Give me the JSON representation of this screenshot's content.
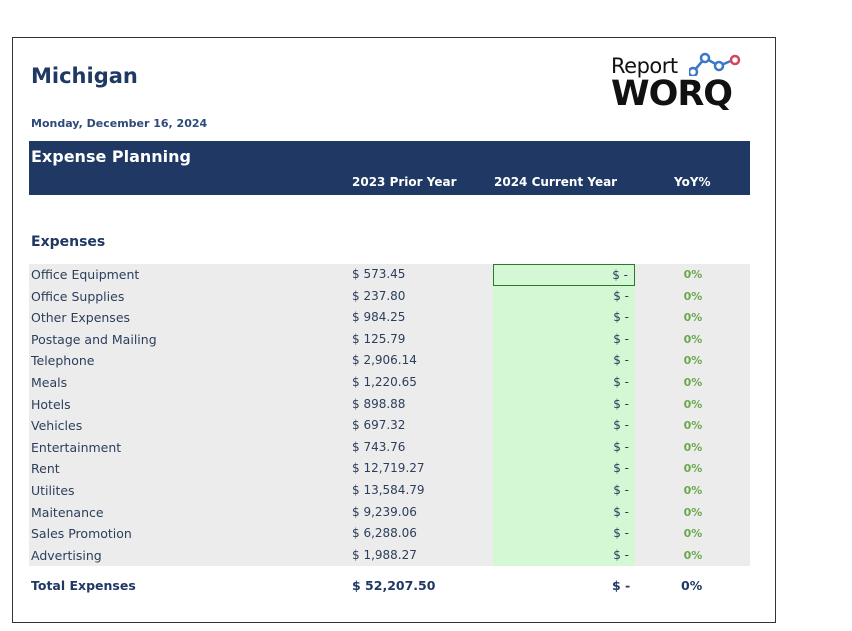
{
  "report": {
    "title": "Michigan",
    "date": "Monday, December 16, 2024",
    "logo_top": "Report",
    "logo_bottom": "WORQ"
  },
  "band": {
    "title": "Expense Planning",
    "col_prior": "2023 Prior Year",
    "col_current": "2024 Current Year",
    "col_yoy": "YoY%"
  },
  "section": "Expenses",
  "rows": [
    {
      "name": "Office Equipment",
      "prior": "$ 573.45",
      "current": "$ -",
      "yoy": "0%"
    },
    {
      "name": "Office Supplies",
      "prior": "$ 237.80",
      "current": "$ -",
      "yoy": "0%"
    },
    {
      "name": "Other Expenses",
      "prior": "$ 984.25",
      "current": "$ -",
      "yoy": "0%"
    },
    {
      "name": "Postage and Mailing",
      "prior": "$ 125.79",
      "current": "$ -",
      "yoy": "0%"
    },
    {
      "name": "Telephone",
      "prior": "$ 2,906.14",
      "current": "$ -",
      "yoy": "0%"
    },
    {
      "name": "Meals",
      "prior": "$ 1,220.65",
      "current": "$ -",
      "yoy": "0%"
    },
    {
      "name": "Hotels",
      "prior": "$ 898.88",
      "current": "$ -",
      "yoy": "0%"
    },
    {
      "name": "Vehicles",
      "prior": "$ 697.32",
      "current": "$ -",
      "yoy": "0%"
    },
    {
      "name": "Entertainment",
      "prior": "$ 743.76",
      "current": "$ -",
      "yoy": "0%"
    },
    {
      "name": "Rent",
      "prior": "$ 12,719.27",
      "current": "$ -",
      "yoy": "0%"
    },
    {
      "name": "Utilites",
      "prior": "$ 13,584.79",
      "current": "$ -",
      "yoy": "0%"
    },
    {
      "name": "Maitenance",
      "prior": "$ 9,239.06",
      "current": "$ -",
      "yoy": "0%"
    },
    {
      "name": "Sales Promotion",
      "prior": "$ 6,288.06",
      "current": "$ -",
      "yoy": "0%"
    },
    {
      "name": "Advertising",
      "prior": "$ 1,988.27",
      "current": "$ -",
      "yoy": "0%"
    }
  ],
  "total": {
    "name": "Total Expenses",
    "prior": "$ 52,207.50",
    "current": "$ -",
    "yoy": "0%"
  },
  "colors": {
    "navy": "#1f3864",
    "input_green": "#d4f7d4",
    "row_gray": "#ececec",
    "yoy_green": "#6aa84f"
  }
}
